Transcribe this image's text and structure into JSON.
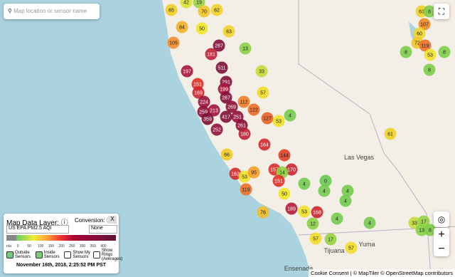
{
  "search": {
    "placeholder": "Map location or sensor name"
  },
  "sensors": [
    65,
    42,
    19,
    70,
    62,
    84,
    50,
    63,
    105,
    13,
    287,
    181,
    511,
    33,
    197,
    151,
    291,
    169,
    199,
    57,
    287,
    224,
    259,
    269,
    112,
    213,
    417,
    251,
    122,
    359,
    127,
    4,
    261,
    53,
    252,
    180,
    164,
    144,
    66,
    157,
    170,
    162,
    53,
    95,
    14,
    151,
    119,
    0,
    4,
    4,
    4,
    4,
    76,
    50,
    189,
    53,
    168,
    4,
    12,
    4,
    57,
    17,
    57,
    33,
    17,
    13,
    8,
    61,
    63,
    8,
    107,
    60,
    72,
    119,
    8,
    8,
    53,
    8
  ],
  "places": [
    "Las Vegas",
    "Tijuana",
    "Ensenada",
    "Yuma"
  ],
  "panel": {
    "title": "Map Data Layer:",
    "conversion": "Conversion:",
    "layer": "US EPA PM2.5 AQI",
    "conversion_value": "None",
    "close": "X",
    "scale": [
      "n/a",
      "0",
      "50",
      "100",
      "150",
      "200",
      "250",
      "300",
      "350",
      "400",
      "500+"
    ],
    "options": [
      "Outside Sensors",
      "Inside Sensors",
      "Show My Sensors",
      "Show Rings (Averages)"
    ],
    "timestamp": "November 16th, 2018, 2:25:52 PM PST"
  },
  "controls": {
    "zoom_in": "+",
    "zoom_out": "−"
  },
  "attribution": "Cookie Consent | © MapTiler © OpenStreetMap contributors"
}
